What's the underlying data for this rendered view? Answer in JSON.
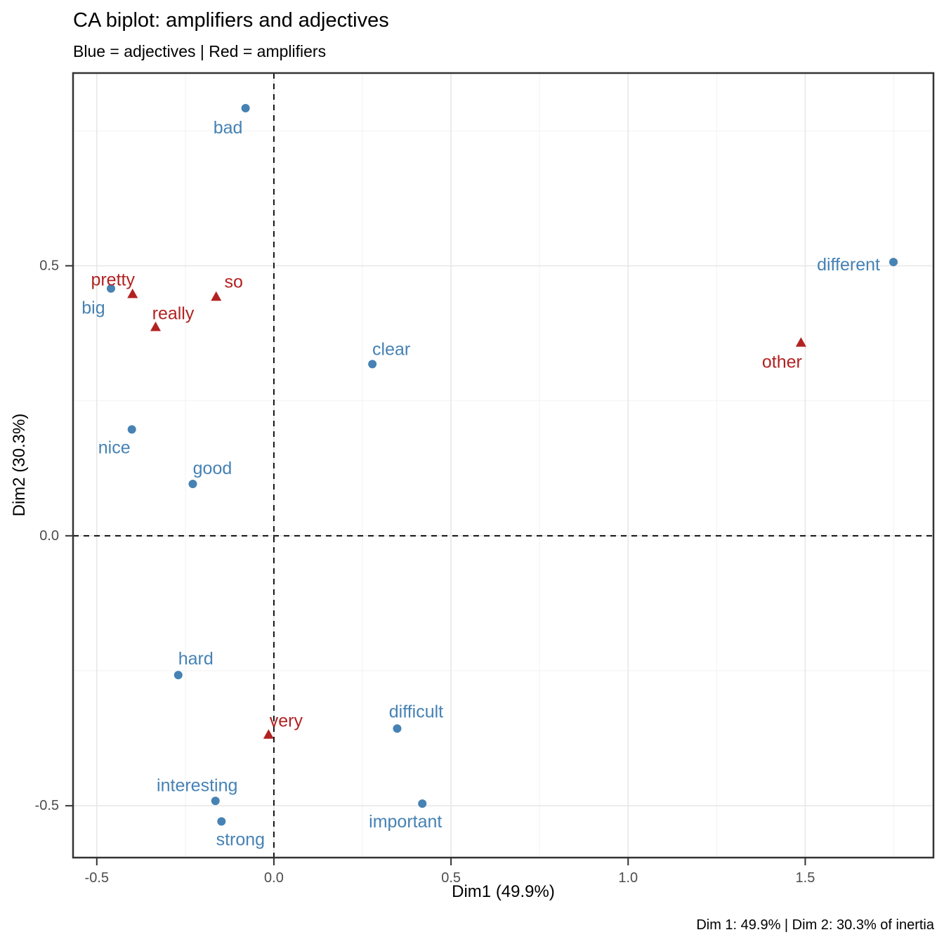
{
  "chart_data": {
    "type": "scatter",
    "title": "CA biplot: amplifiers and adjectives",
    "subtitle": "Blue = adjectives | Red = amplifiers",
    "xlabel": "Dim1 (49.9%)",
    "ylabel": "Dim2 (30.3%)",
    "caption": "Dim 1: 49.9% | Dim 2: 30.3% of inertia",
    "xlim": [
      -0.567,
      1.862
    ],
    "ylim": [
      -0.596,
      0.857
    ],
    "x_ticks": [
      -0.5,
      0.0,
      0.5,
      1.0,
      1.5
    ],
    "x_tick_labels": [
      "-0.5",
      "0.0",
      "0.5",
      "1.0",
      "1.5"
    ],
    "y_ticks": [
      0.5,
      0.0,
      -0.5
    ],
    "y_tick_labels": [
      "0.5",
      "0.0",
      "-0.5"
    ],
    "minor_grid_step": 0.25,
    "grid": true,
    "legend_position": "none",
    "reference_lines": [
      {
        "orientation": "vertical",
        "at": 0,
        "style": "dashed"
      },
      {
        "orientation": "horizontal",
        "at": 0,
        "style": "dashed"
      }
    ],
    "colors": {
      "adjectives": "#4682B4",
      "amplifiers": "#B22222",
      "grid_major": "#E7E7E7",
      "grid_minor": "#F2F2F2",
      "panel_border": "#333333",
      "tick_label": "#4D4D4D",
      "reference_line": "#000000"
    },
    "series": [
      {
        "name": "adjectives",
        "marker": "circle",
        "color_key": "adjectives",
        "points": [
          {
            "label": "bad",
            "x": -0.08,
            "y": 0.792,
            "label_dx": -25,
            "label_dy": 28
          },
          {
            "label": "big",
            "x": -0.46,
            "y": 0.458,
            "label_dx": -25,
            "label_dy": 28
          },
          {
            "label": "nice",
            "x": -0.401,
            "y": 0.197,
            "label_dx": -25,
            "label_dy": 26
          },
          {
            "label": "good",
            "x": -0.229,
            "y": 0.096,
            "label_dx": 28,
            "label_dy": -22
          },
          {
            "label": "clear",
            "x": 0.278,
            "y": 0.318,
            "label_dx": 27,
            "label_dy": -21
          },
          {
            "label": "different",
            "x": 1.749,
            "y": 0.507,
            "label_dx": -64,
            "label_dy": 4
          },
          {
            "label": "hard",
            "x": -0.27,
            "y": -0.258,
            "label_dx": 25,
            "label_dy": -23
          },
          {
            "label": "difficult",
            "x": 0.348,
            "y": -0.357,
            "label_dx": 27,
            "label_dy": -24
          },
          {
            "label": "interesting",
            "x": -0.165,
            "y": -0.491,
            "label_dx": -26,
            "label_dy": -22
          },
          {
            "label": "strong",
            "x": -0.148,
            "y": -0.529,
            "label_dx": 27,
            "label_dy": 26
          },
          {
            "label": "important",
            "x": 0.419,
            "y": -0.496,
            "label_dx": -24,
            "label_dy": 26
          }
        ]
      },
      {
        "name": "amplifiers",
        "marker": "triangle",
        "color_key": "amplifiers",
        "points": [
          {
            "label": "pretty",
            "x": -0.399,
            "y": 0.448,
            "label_dx": -28,
            "label_dy": -20
          },
          {
            "label": "really",
            "x": -0.334,
            "y": 0.387,
            "label_dx": 25,
            "label_dy": -19
          },
          {
            "label": "so",
            "x": -0.163,
            "y": 0.443,
            "label_dx": 25,
            "label_dy": -21
          },
          {
            "label": "very",
            "x": -0.015,
            "y": -0.368,
            "label_dx": 25,
            "label_dy": -19
          },
          {
            "label": "other",
            "x": 1.488,
            "y": 0.358,
            "label_dx": -27,
            "label_dy": 28
          }
        ]
      }
    ]
  }
}
